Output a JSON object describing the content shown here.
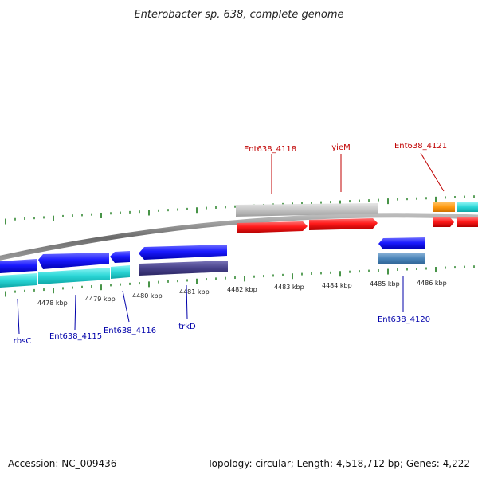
{
  "title": "Enterobacter sp. 638, complete genome",
  "footer": {
    "accession": "Accession: NC_009436",
    "summary": "Topology: circular; Length: 4,518,712 bp; Genes: 4,222"
  },
  "colors": {
    "forward_label": "#c00000",
    "reverse_label": "#0000aa",
    "ticks": "#1a7a1a",
    "backbone": "#777777"
  },
  "scale_labels": [
    "4478 kbp",
    "4479 kbp",
    "4480 kbp",
    "4481 kbp",
    "4482 kbp",
    "4483 kbp",
    "4484 kbp",
    "4485 kbp",
    "4486 kbp"
  ],
  "gene_labels": {
    "forward": [
      "Ent638_4118",
      "yieM",
      "Ent638_4121"
    ],
    "reverse": [
      "rbsC",
      "Ent638_4115",
      "Ent638_4116",
      "trkD",
      "Ent638_4120"
    ]
  }
}
